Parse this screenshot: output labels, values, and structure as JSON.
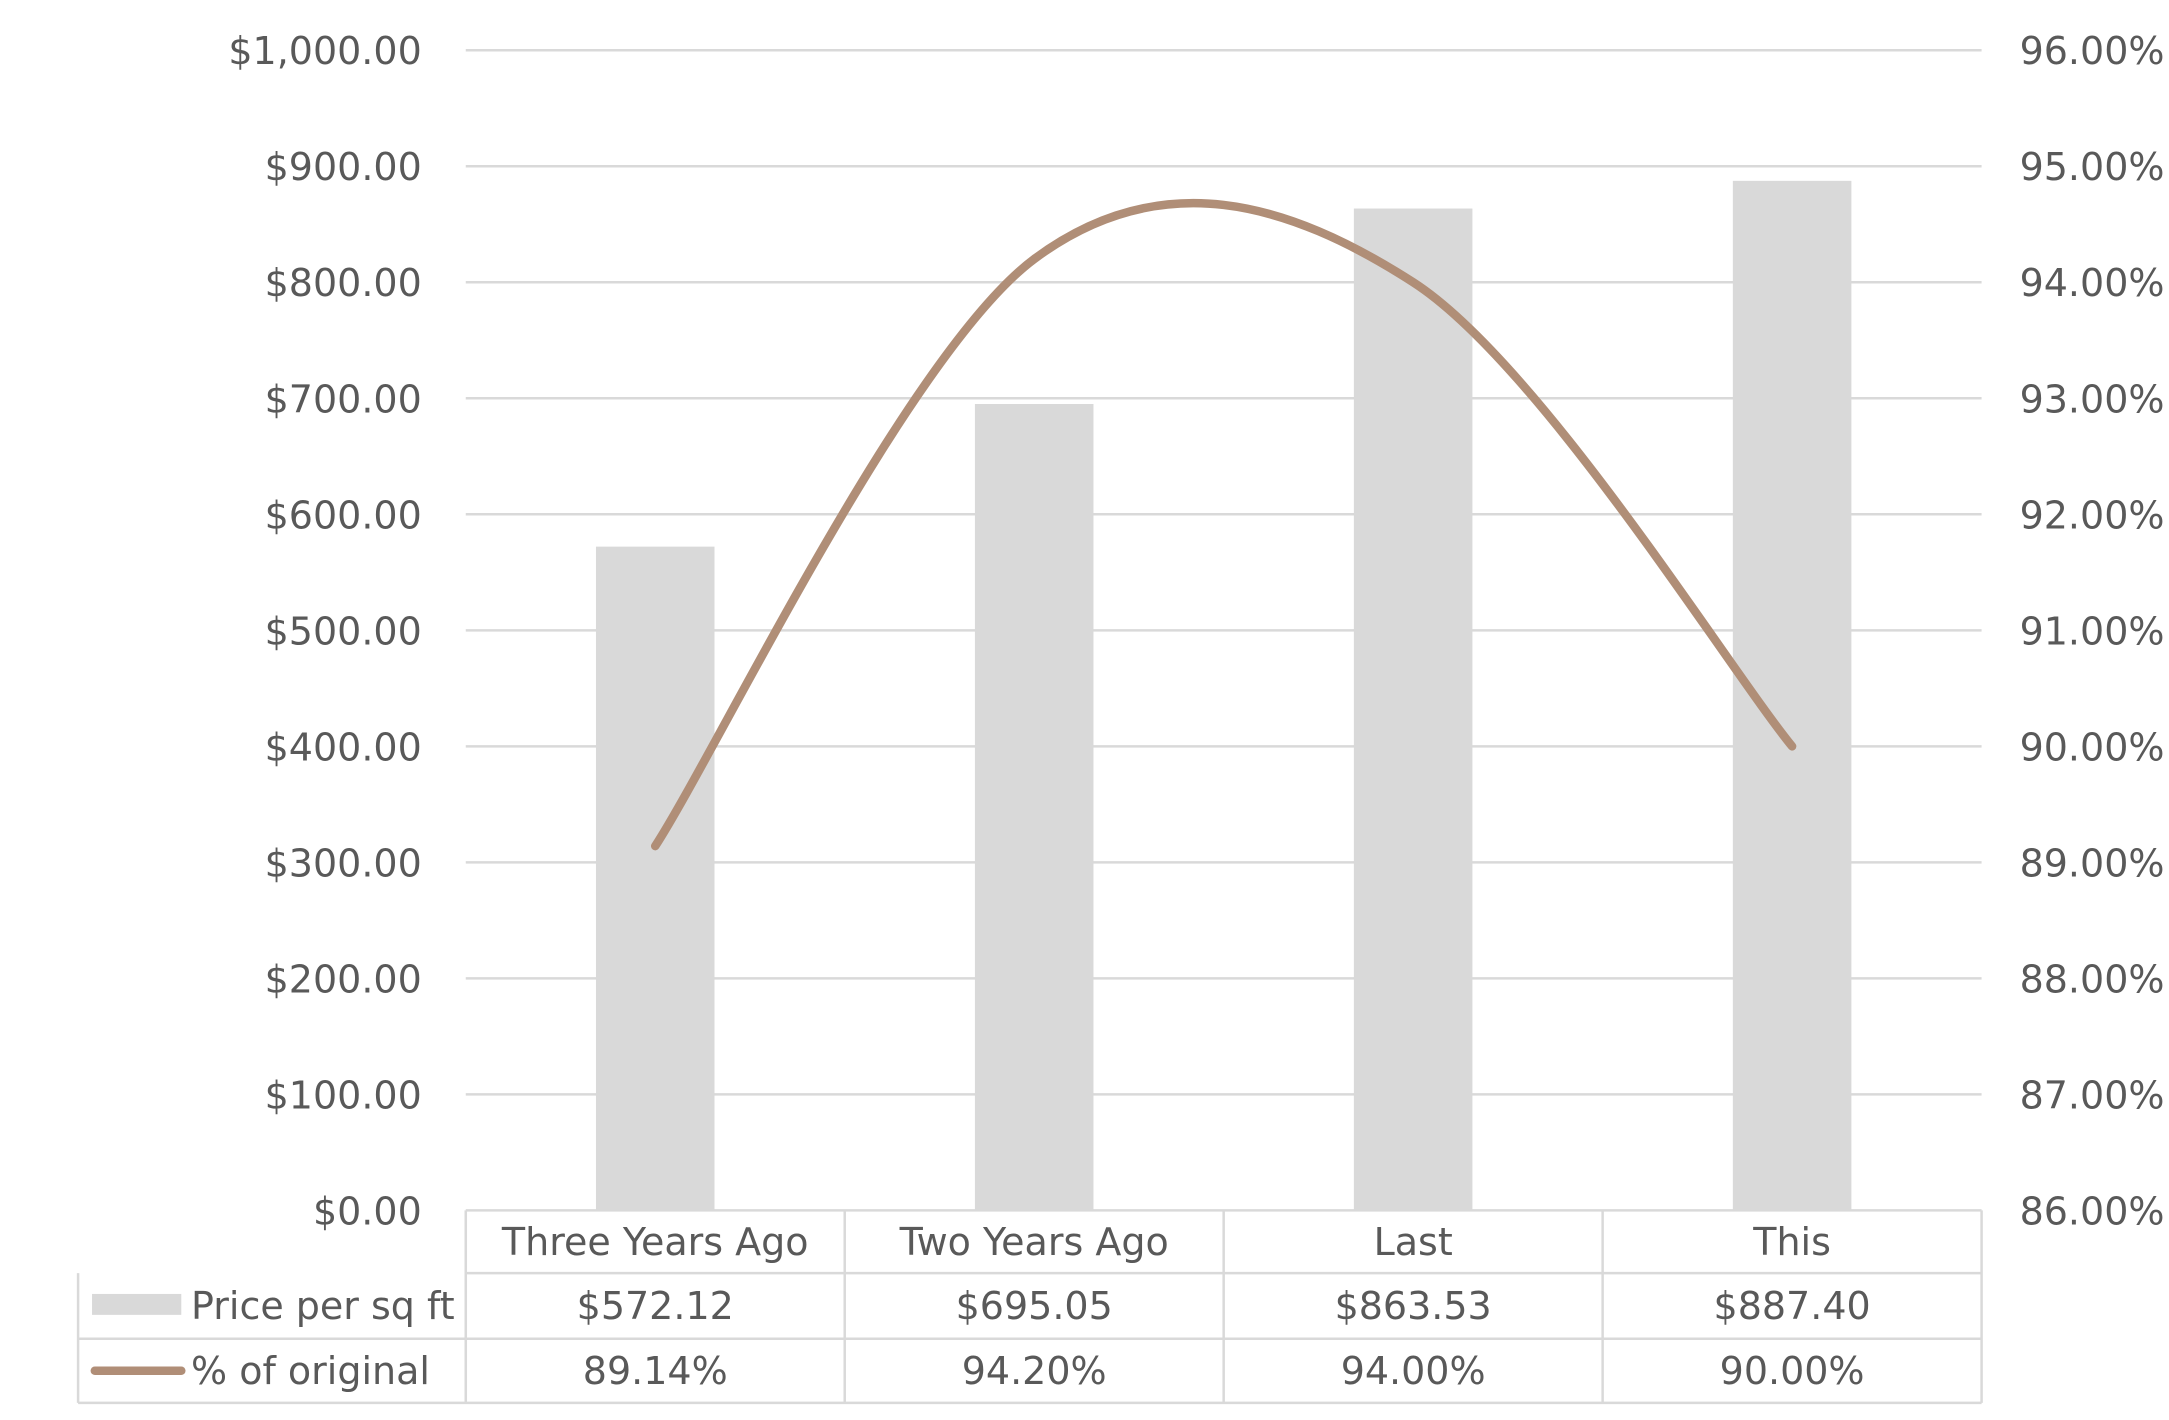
{
  "chart_data": {
    "type": "bar",
    "categories": [
      "Three Years Ago",
      "Two Years Ago",
      "Last",
      "This"
    ],
    "series": [
      {
        "name": "Price per sq ft",
        "kind": "bar",
        "axis": "left",
        "color": "#d9d9d9",
        "values": [
          572.12,
          695.05,
          863.53,
          887.4
        ],
        "labels": [
          "$572.12",
          "$695.05",
          "$863.53",
          "$887.40"
        ]
      },
      {
        "name": "% of original",
        "kind": "line",
        "smooth": true,
        "axis": "right",
        "color": "#b08e77",
        "values": [
          89.14,
          94.2,
          94.0,
          90.0
        ],
        "labels": [
          "89.14%",
          "94.20%",
          "94.00%",
          "90.00%"
        ]
      }
    ],
    "y_left": {
      "min": 0,
      "max": 1000,
      "step": 100,
      "tick_labels": [
        "$0.00",
        "$100.00",
        "$200.00",
        "$300.00",
        "$400.00",
        "$500.00",
        "$600.00",
        "$700.00",
        "$800.00",
        "$900.00",
        "$1,000.00"
      ]
    },
    "y_right": {
      "min": 86,
      "max": 96,
      "step": 1,
      "tick_labels": [
        "86.00%",
        "87.00%",
        "88.00%",
        "89.00%",
        "90.00%",
        "91.00%",
        "92.00%",
        "93.00%",
        "94.00%",
        "95.00%",
        "96.00%"
      ]
    },
    "grid": true,
    "legend": "data-table-below",
    "text_color": "#595959",
    "grid_color": "#d9d9d9"
  }
}
